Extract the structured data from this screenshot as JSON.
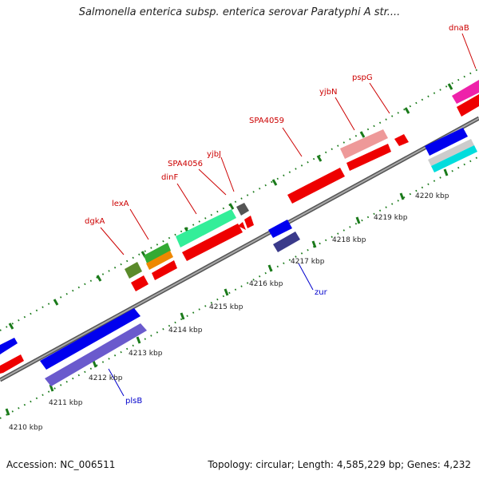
{
  "title": "Salmonella enterica subsp. enterica serovar Paratyphi A str....",
  "footer": {
    "accession": "Accession: NC_006511",
    "summary": "Topology: circular; Length: 4,585,229 bp; Genes: 4,232"
  },
  "colors": {
    "backbone": "#8a8a8a",
    "tick": "#1a7a1a",
    "label_red": "#cc0000",
    "label_blue": "#0000cc"
  },
  "gene_labels": [
    {
      "id": "dnaB",
      "text": "dnaB",
      "color": "red"
    },
    {
      "id": "pspG",
      "text": "pspG",
      "color": "red"
    },
    {
      "id": "yjbN",
      "text": "yjbN",
      "color": "red"
    },
    {
      "id": "SPA4059",
      "text": "SPA4059",
      "color": "red"
    },
    {
      "id": "yjbJ",
      "text": "yjbJ",
      "color": "red"
    },
    {
      "id": "SPA4056",
      "text": "SPA4056",
      "color": "red"
    },
    {
      "id": "dinF",
      "text": "dinF",
      "color": "red"
    },
    {
      "id": "lexA",
      "text": "lexA",
      "color": "red"
    },
    {
      "id": "dgkA",
      "text": "dgkA",
      "color": "red"
    },
    {
      "id": "zur",
      "text": "zur",
      "color": "blue"
    },
    {
      "id": "plsB",
      "text": "plsB",
      "color": "blue"
    }
  ],
  "kbp_labels": [
    "4210 kbp",
    "4211 kbp",
    "4212 kbp",
    "4213 kbp",
    "4214 kbp",
    "4215 kbp",
    "4216 kbp",
    "4217 kbp",
    "4218 kbp",
    "4219 kbp",
    "4220 kbp"
  ]
}
